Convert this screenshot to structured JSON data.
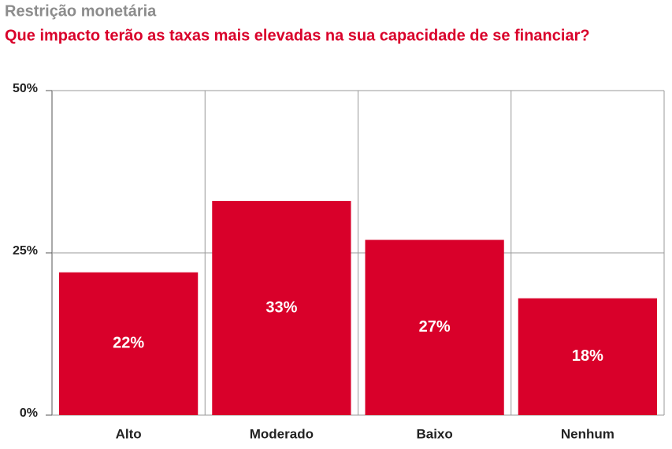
{
  "chart_data": {
    "type": "bar",
    "title": "Restrição monetária",
    "subtitle": "Que impacto terão as taxas mais elevadas na sua capacidade de se financiar?",
    "categories": [
      "Alto",
      "Moderado",
      "Baixo",
      "Nenhum"
    ],
    "values": [
      22,
      33,
      27,
      18
    ],
    "value_labels": [
      "22%",
      "33%",
      "27%",
      "18%"
    ],
    "color": "#d9002a",
    "ylim": [
      0,
      50
    ],
    "yticks": [
      {
        "value": 0,
        "label": "0%"
      },
      {
        "value": 25,
        "label": "25%"
      },
      {
        "value": 50,
        "label": "50%"
      }
    ],
    "grid": true
  }
}
